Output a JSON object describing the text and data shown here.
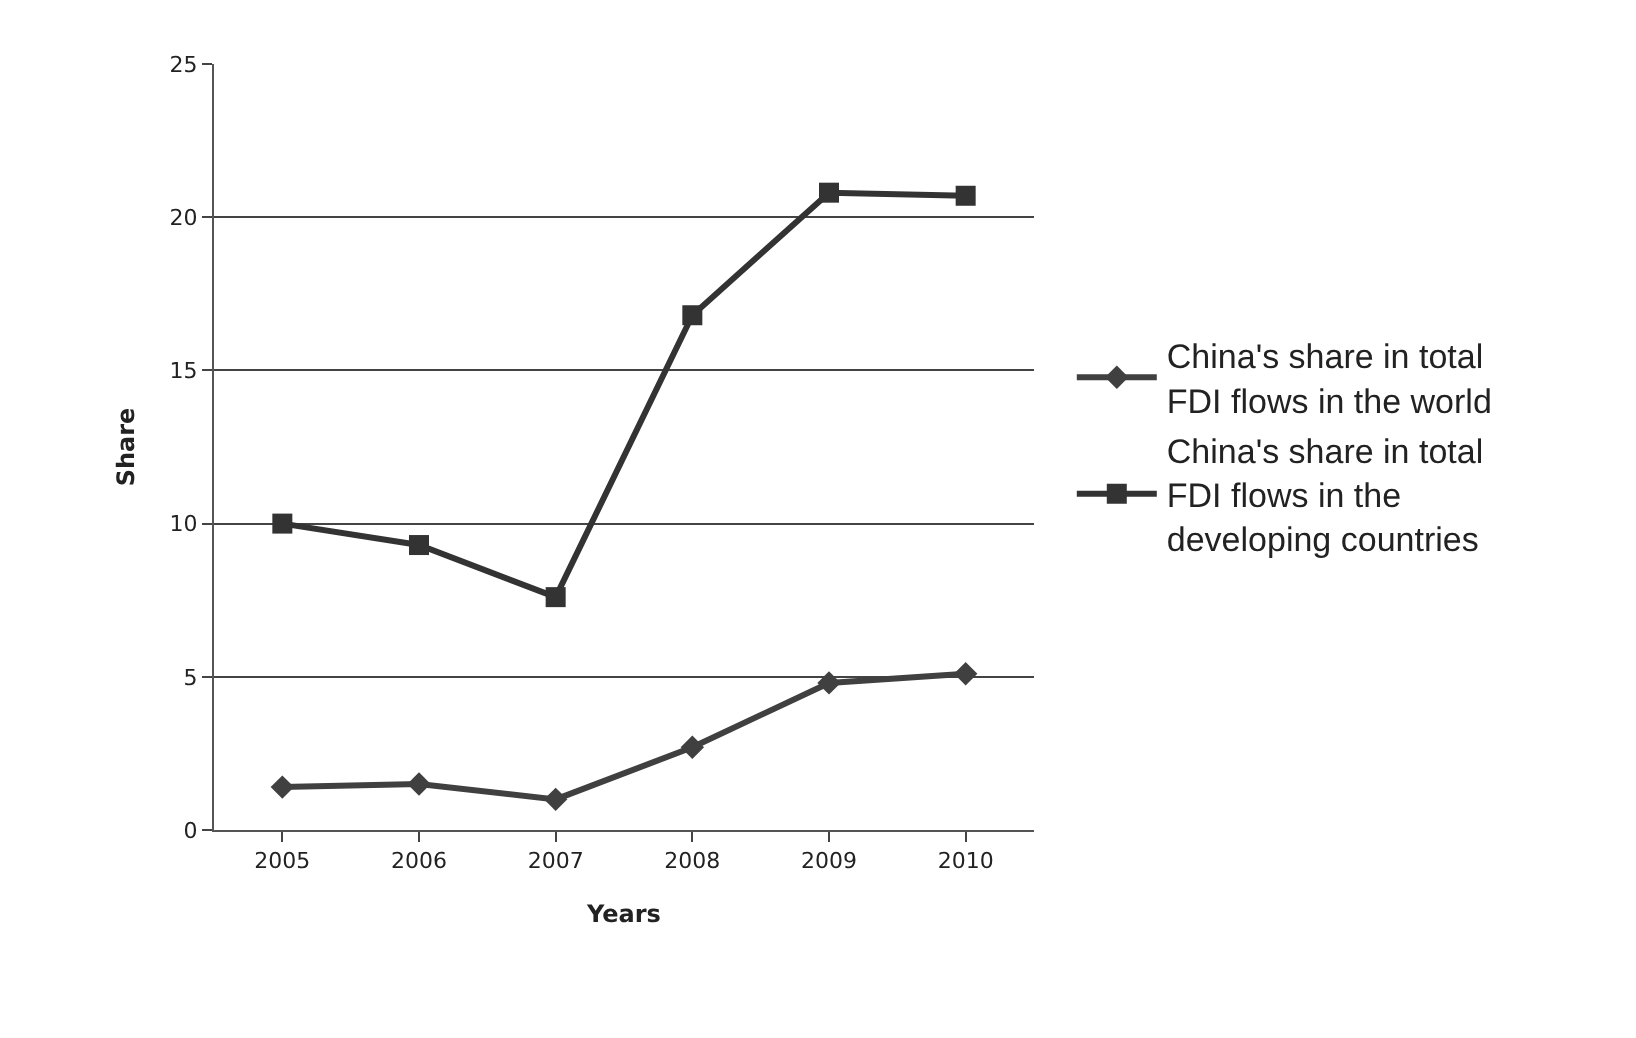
{
  "chart_data": {
    "type": "line",
    "xlabel": "Years",
    "ylabel": "Share",
    "categories": [
      "2005",
      "2006",
      "2007",
      "2008",
      "2009",
      "2010"
    ],
    "series": [
      {
        "name": "China's share in total FDI flows in the world",
        "color": "#404040",
        "marker": "diamond",
        "values": [
          1.4,
          1.5,
          1.0,
          2.7,
          4.8,
          5.1
        ]
      },
      {
        "name": "China's share in total FDI flows in the developing countries",
        "color": "#333333",
        "marker": "square",
        "values": [
          10.0,
          9.3,
          7.6,
          16.8,
          20.8,
          20.7
        ]
      }
    ],
    "ylim": [
      0,
      25
    ],
    "yticks": [
      0,
      5,
      10,
      15,
      20,
      25
    ],
    "grid": "y",
    "legend": "right",
    "line_style": "solid"
  }
}
